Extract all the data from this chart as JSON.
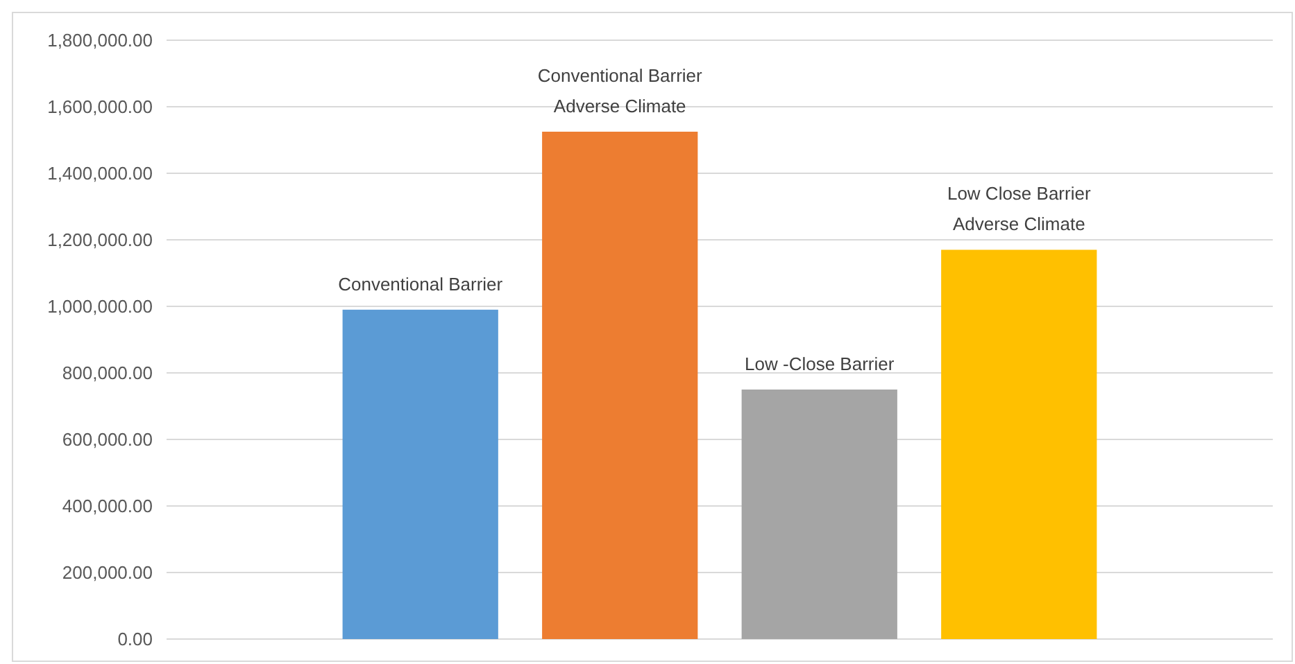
{
  "chart_data": {
    "type": "bar",
    "categories": [
      null
    ],
    "series": [
      {
        "name": "Conventional Barrier",
        "color": "#5b9bd5",
        "values": [
          990000
        ]
      },
      {
        "name": "Conventional Barrier Adverse Climate",
        "color": "#ed7d31",
        "values": [
          1525000
        ]
      },
      {
        "name": "Low -Close Barrier",
        "color": "#a5a5a5",
        "values": [
          750000
        ]
      },
      {
        "name": "Low Close Barrier Adverse Climate",
        "color": "#ffc000",
        "values": [
          1170000
        ]
      }
    ],
    "ylim": [
      0,
      1800000
    ],
    "yticks": [
      {
        "value": 0,
        "label": "0.00"
      },
      {
        "value": 200000,
        "label": "200,000.00"
      },
      {
        "value": 400000,
        "label": "400,000.00"
      },
      {
        "value": 600000,
        "label": "600,000.00"
      },
      {
        "value": 800000,
        "label": "800,000.00"
      },
      {
        "value": 1000000,
        "label": "1,000,000.00"
      },
      {
        "value": 1200000,
        "label": "1,200,000.00"
      },
      {
        "value": 1400000,
        "label": "1,400,000.00"
      },
      {
        "value": 1600000,
        "label": "1,600,000.00"
      },
      {
        "value": 1800000,
        "label": "1,800,000.00"
      }
    ],
    "grid": "y"
  }
}
